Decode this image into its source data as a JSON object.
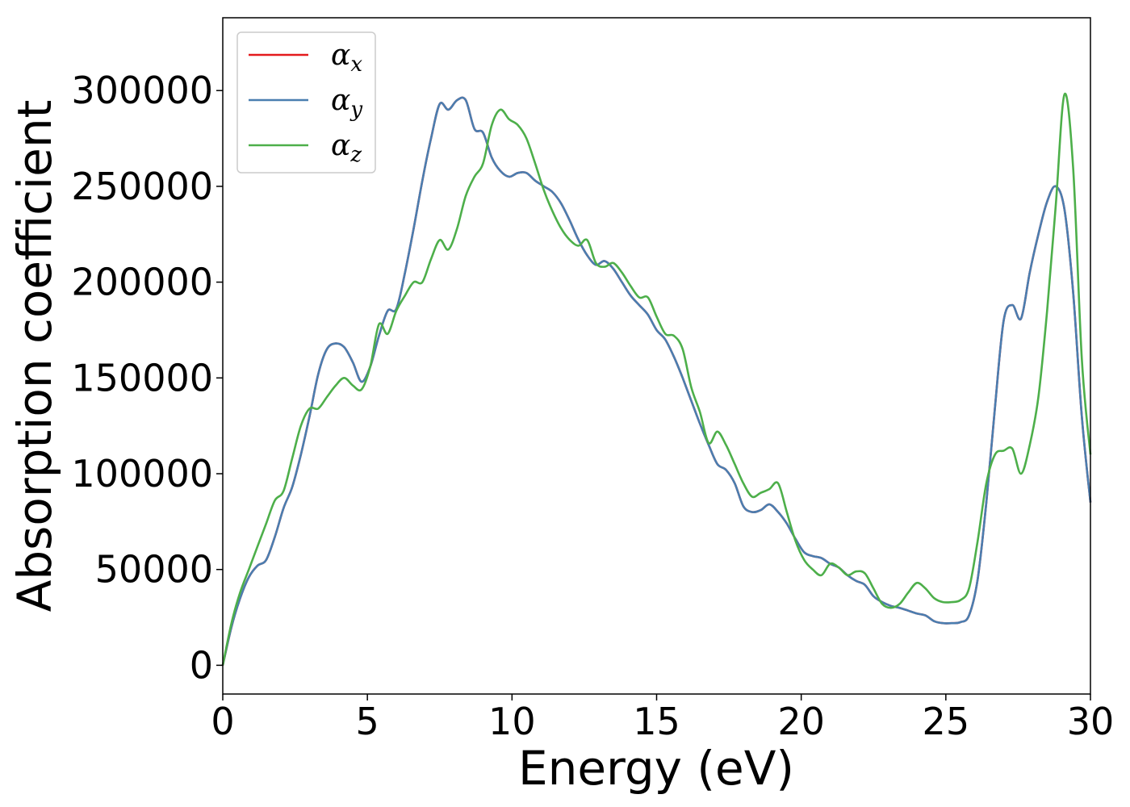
{
  "chart_data": {
    "type": "line",
    "xlabel": "Energy (eV)",
    "ylabel": "Absorption coefficient",
    "xlim": [
      0,
      30
    ],
    "ylim": [
      -15000,
      338000
    ],
    "xticks": [
      0,
      5,
      10,
      15,
      20,
      25,
      30
    ],
    "xtick_labels": [
      "0",
      "5",
      "10",
      "15",
      "20",
      "25",
      "30"
    ],
    "yticks": [
      0,
      50000,
      100000,
      150000,
      200000,
      250000,
      300000
    ],
    "ytick_labels": [
      "0",
      "50000",
      "100000",
      "150000",
      "200000",
      "250000",
      "300000"
    ],
    "grid": false,
    "legend_position": "top-left",
    "series": [
      {
        "name": "α",
        "subscript": "x",
        "color": "#e41a1c",
        "x": [
          0,
          0.3,
          0.6,
          0.9,
          1.2,
          1.5,
          1.8,
          2.1,
          2.4,
          2.7,
          3.0,
          3.3,
          3.6,
          3.9,
          4.2,
          4.5,
          4.8,
          5.1,
          5.4,
          5.7,
          6.0,
          6.3,
          6.6,
          6.9,
          7.2,
          7.5,
          7.8,
          8.1,
          8.4,
          8.7,
          9.0,
          9.3,
          9.6,
          9.9,
          10.2,
          10.5,
          10.8,
          11.1,
          11.4,
          11.7,
          12.0,
          12.3,
          12.6,
          12.9,
          13.2,
          13.5,
          13.8,
          14.1,
          14.4,
          14.7,
          15.0,
          15.3,
          15.6,
          15.9,
          16.2,
          16.5,
          16.8,
          17.1,
          17.4,
          17.7,
          18.0,
          18.3,
          18.6,
          18.9,
          19.2,
          19.5,
          19.8,
          20.1,
          20.4,
          20.7,
          21.0,
          21.3,
          21.6,
          21.9,
          22.2,
          22.5,
          22.8,
          23.1,
          23.4,
          23.7,
          24.0,
          24.3,
          24.6,
          24.9,
          25.2,
          25.5,
          25.8,
          26.1,
          26.4,
          26.7,
          27.0,
          27.3,
          27.6,
          27.9,
          28.2,
          28.5,
          28.8,
          29.1,
          29.4,
          29.7,
          30.0
        ],
        "y": [
          0,
          20000,
          35000,
          46000,
          52000,
          55000,
          67000,
          82000,
          93000,
          110000,
          130000,
          152000,
          165000,
          168000,
          166000,
          158000,
          148000,
          156000,
          172000,
          185000,
          186000,
          205000,
          228000,
          253000,
          275000,
          293000,
          290000,
          295000,
          295000,
          280000,
          278000,
          265000,
          258000,
          255000,
          257000,
          257000,
          253000,
          250000,
          247000,
          241000,
          232000,
          222000,
          214000,
          209000,
          211000,
          207000,
          200000,
          193000,
          188000,
          183000,
          175000,
          170000,
          161000,
          150000,
          138000,
          126000,
          115000,
          105000,
          102000,
          95000,
          83000,
          80000,
          81000,
          84000,
          80000,
          74000,
          66000,
          59000,
          57000,
          56000,
          53000,
          51000,
          47000,
          44000,
          42000,
          36000,
          33000,
          31000,
          30000,
          28500,
          27000,
          26000,
          23000,
          22000,
          22000,
          22500,
          26000,
          45000,
          85000,
          135000,
          180000,
          188000,
          181000,
          205000,
          225000,
          242000,
          250000,
          238000,
          195000,
          130000,
          85000
        ]
      },
      {
        "name": "α",
        "subscript": "y",
        "color": "#4a7eb0",
        "x": [
          0,
          0.3,
          0.6,
          0.9,
          1.2,
          1.5,
          1.8,
          2.1,
          2.4,
          2.7,
          3.0,
          3.3,
          3.6,
          3.9,
          4.2,
          4.5,
          4.8,
          5.1,
          5.4,
          5.7,
          6.0,
          6.3,
          6.6,
          6.9,
          7.2,
          7.5,
          7.8,
          8.1,
          8.4,
          8.7,
          9.0,
          9.3,
          9.6,
          9.9,
          10.2,
          10.5,
          10.8,
          11.1,
          11.4,
          11.7,
          12.0,
          12.3,
          12.6,
          12.9,
          13.2,
          13.5,
          13.8,
          14.1,
          14.4,
          14.7,
          15.0,
          15.3,
          15.6,
          15.9,
          16.2,
          16.5,
          16.8,
          17.1,
          17.4,
          17.7,
          18.0,
          18.3,
          18.6,
          18.9,
          19.2,
          19.5,
          19.8,
          20.1,
          20.4,
          20.7,
          21.0,
          21.3,
          21.6,
          21.9,
          22.2,
          22.5,
          22.8,
          23.1,
          23.4,
          23.7,
          24.0,
          24.3,
          24.6,
          24.9,
          25.2,
          25.5,
          25.8,
          26.1,
          26.4,
          26.7,
          27.0,
          27.3,
          27.6,
          27.9,
          28.2,
          28.5,
          28.8,
          29.1,
          29.4,
          29.7,
          30.0
        ],
        "y": [
          0,
          20000,
          35000,
          46000,
          52000,
          55000,
          67000,
          82000,
          93000,
          110000,
          130000,
          152000,
          165000,
          168000,
          166000,
          158000,
          148000,
          156000,
          172000,
          185000,
          186000,
          205000,
          228000,
          253000,
          275000,
          293000,
          290000,
          295000,
          295000,
          280000,
          278000,
          265000,
          258000,
          255000,
          257000,
          257000,
          253000,
          250000,
          247000,
          241000,
          232000,
          222000,
          214000,
          209000,
          211000,
          207000,
          200000,
          193000,
          188000,
          183000,
          175000,
          170000,
          161000,
          150000,
          138000,
          126000,
          115000,
          105000,
          102000,
          95000,
          83000,
          80000,
          81000,
          84000,
          80000,
          74000,
          66000,
          59000,
          57000,
          56000,
          53000,
          51000,
          47000,
          44000,
          42000,
          36000,
          33000,
          31000,
          30000,
          28500,
          27000,
          26000,
          23000,
          22000,
          22000,
          22500,
          26000,
          45000,
          85000,
          135000,
          180000,
          188000,
          181000,
          205000,
          225000,
          242000,
          250000,
          238000,
          195000,
          130000,
          85000
        ]
      },
      {
        "name": "α",
        "subscript": "z",
        "color": "#4daf4a",
        "x": [
          0,
          0.3,
          0.6,
          0.9,
          1.2,
          1.5,
          1.8,
          2.1,
          2.4,
          2.7,
          3.0,
          3.3,
          3.6,
          3.9,
          4.2,
          4.5,
          4.8,
          5.1,
          5.4,
          5.7,
          6.0,
          6.3,
          6.6,
          6.9,
          7.2,
          7.5,
          7.8,
          8.1,
          8.4,
          8.7,
          9.0,
          9.3,
          9.6,
          9.9,
          10.2,
          10.5,
          10.8,
          11.1,
          11.4,
          11.7,
          12.0,
          12.3,
          12.6,
          12.9,
          13.2,
          13.5,
          13.8,
          14.1,
          14.4,
          14.7,
          15.0,
          15.3,
          15.6,
          15.9,
          16.2,
          16.5,
          16.8,
          17.1,
          17.4,
          17.7,
          18.0,
          18.3,
          18.6,
          18.9,
          19.2,
          19.5,
          19.8,
          20.1,
          20.4,
          20.7,
          21.0,
          21.3,
          21.6,
          21.9,
          22.2,
          22.5,
          22.8,
          23.1,
          23.4,
          23.7,
          24.0,
          24.3,
          24.6,
          24.9,
          25.2,
          25.5,
          25.8,
          26.1,
          26.4,
          26.7,
          27.0,
          27.3,
          27.6,
          27.9,
          28.2,
          28.5,
          28.8,
          29.1,
          29.4,
          29.7,
          30.0
        ],
        "y": [
          0,
          22000,
          38000,
          50000,
          62000,
          74000,
          86000,
          91000,
          108000,
          125000,
          134000,
          134000,
          140000,
          146000,
          150000,
          146000,
          144000,
          156000,
          178000,
          173000,
          185000,
          193000,
          200000,
          200000,
          212000,
          222000,
          217000,
          228000,
          245000,
          255000,
          262000,
          282000,
          290000,
          285000,
          282000,
          275000,
          262000,
          248000,
          237000,
          228000,
          222000,
          219000,
          222000,
          210000,
          208000,
          210000,
          205000,
          198000,
          192000,
          192000,
          182000,
          173000,
          172000,
          165000,
          145000,
          132000,
          116000,
          122000,
          115000,
          105000,
          95000,
          88000,
          90000,
          92000,
          95000,
          80000,
          65000,
          55000,
          50000,
          47000,
          53000,
          51000,
          47000,
          49000,
          48000,
          40000,
          32000,
          30000,
          32000,
          38000,
          43000,
          40000,
          35000,
          33000,
          33000,
          34000,
          40000,
          65000,
          95000,
          110000,
          112000,
          113000,
          100000,
          115000,
          140000,
          185000,
          240000,
          298000,
          260000,
          160000,
          110000
        ]
      }
    ]
  }
}
